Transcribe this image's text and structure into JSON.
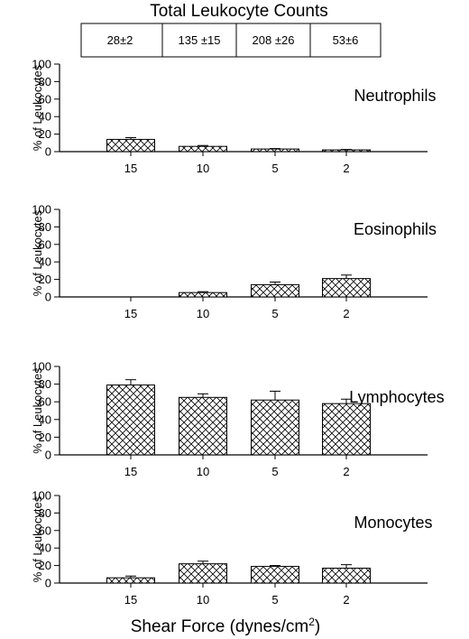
{
  "header": {
    "title": "Total Leukocyte Counts",
    "counts": [
      "28±2",
      "135 ±15",
      "208 ±26",
      "53±6"
    ]
  },
  "xlabel": "Shear Force (dynes/cm²)",
  "chart_data": [
    {
      "type": "bar",
      "title": "Neutrophils",
      "ylabel": "% of Leukocytes",
      "categories": [
        "15",
        "10",
        "5",
        "2"
      ],
      "values": [
        14,
        6,
        3,
        2
      ],
      "errors": [
        2,
        1,
        0.5,
        0.5
      ],
      "ylim": [
        0,
        100
      ],
      "yticks": [
        0,
        20,
        40,
        60,
        80,
        100
      ],
      "hatch": "crosshatch"
    },
    {
      "type": "bar",
      "title": "Eosinophils",
      "ylabel": "% of Leukocytes",
      "categories": [
        "15",
        "10",
        "5",
        "2"
      ],
      "values": [
        null,
        5,
        14,
        21
      ],
      "errors": [
        null,
        1,
        3,
        4
      ],
      "ylim": [
        0,
        100
      ],
      "yticks": [
        0,
        20,
        40,
        60,
        80,
        100
      ],
      "hatch": "crosshatch"
    },
    {
      "type": "bar",
      "title": "Lymphocytes",
      "ylabel": "% of Leukocytes",
      "categories": [
        "15",
        "10",
        "5",
        "2"
      ],
      "values": [
        79,
        65,
        62,
        58
      ],
      "errors": [
        6,
        4,
        10,
        5
      ],
      "ylim": [
        0,
        100
      ],
      "yticks": [
        0,
        20,
        40,
        60,
        80,
        100
      ],
      "hatch": "crosshatch"
    },
    {
      "type": "bar",
      "title": "Monocytes",
      "ylabel": "% of Leukocytes",
      "categories": [
        "15",
        "10",
        "5",
        "2"
      ],
      "values": [
        6,
        22,
        19,
        17
      ],
      "errors": [
        2,
        3,
        1,
        4
      ],
      "ylim": [
        0,
        100
      ],
      "yticks": [
        0,
        20,
        40,
        60,
        80,
        100
      ],
      "hatch": "crosshatch"
    }
  ]
}
